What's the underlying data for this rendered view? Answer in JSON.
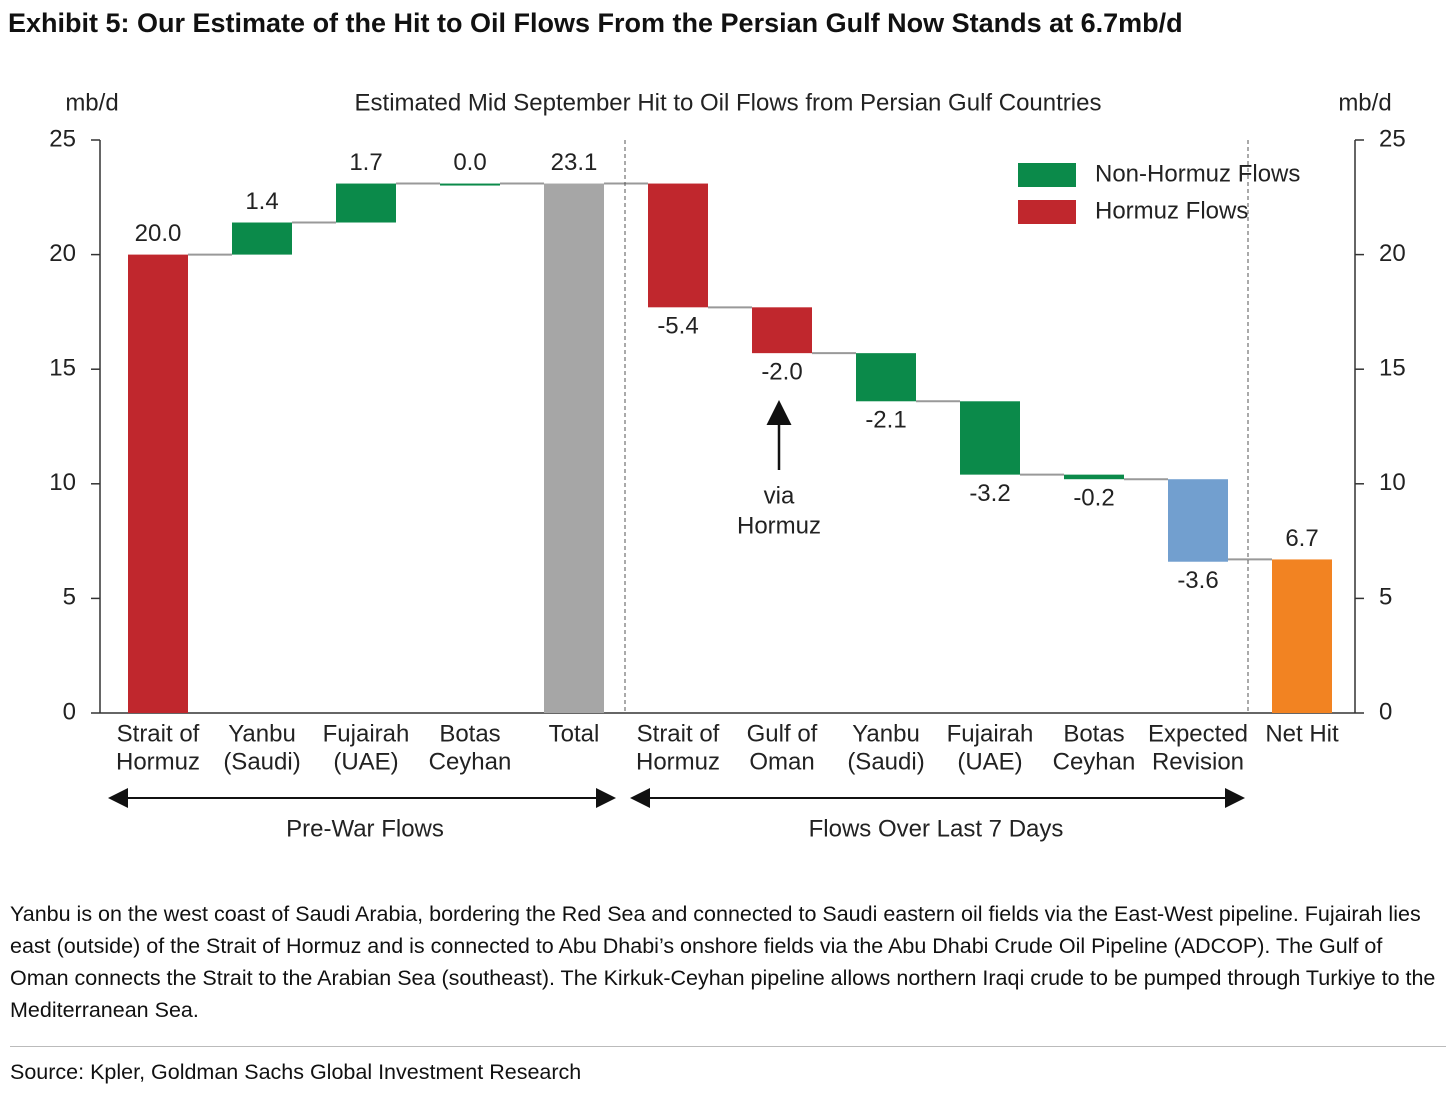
{
  "title": "Exhibit 5: Our Estimate of the Hit to Oil Flows From the Persian Gulf Now Stands at 6.7mb/d",
  "chart_data": {
    "type": "waterfall",
    "title": "Estimated Mid September Hit to Oil Flows from Persian Gulf Countries",
    "ylabel": "mb/d",
    "y2label": "mb/d",
    "categories": [
      [
        "Strait of",
        "Hormuz"
      ],
      [
        "Yanbu",
        "(Saudi)"
      ],
      [
        "Fujairah",
        "(UAE)"
      ],
      [
        "Botas",
        "Ceyhan"
      ],
      [
        "Total"
      ],
      [
        "Strait of",
        "Hormuz"
      ],
      [
        "Gulf of",
        "Oman"
      ],
      [
        "Yanbu",
        "(Saudi)"
      ],
      [
        "Fujairah",
        "(UAE)"
      ],
      [
        "Botas",
        "Ceyhan"
      ],
      [
        "Expected",
        "Revision"
      ],
      [
        "Net Hit"
      ]
    ],
    "kinds": [
      "delta",
      "delta",
      "delta",
      "delta",
      "total",
      "delta",
      "delta",
      "delta",
      "delta",
      "delta",
      "delta",
      "total"
    ],
    "values": [
      20.0,
      1.4,
      1.7,
      0.0,
      23.1,
      -5.4,
      -2.0,
      -2.1,
      -3.2,
      -0.2,
      -3.6,
      6.7
    ],
    "value_labels": [
      "20.0",
      "1.4",
      "1.7",
      "0.0",
      "23.1",
      "-5.4",
      "-2.0",
      "-2.1",
      "-3.2",
      "-0.2",
      "-3.6",
      "6.7"
    ],
    "colors": [
      "#c0272d",
      "#0b8a4a",
      "#0b8a4a",
      "#0b8a4a",
      "#a6a6a6",
      "#c0272d",
      "#c0272d",
      "#0b8a4a",
      "#0b8a4a",
      "#0b8a4a",
      "#729fcf",
      "#f28322"
    ],
    "legend": [
      {
        "name": "Non-Hormuz Flows",
        "color": "#0b8a4a"
      },
      {
        "name": "Hormuz Flows",
        "color": "#c0272d"
      }
    ],
    "ylim": [
      0,
      25
    ],
    "yticks": [
      0,
      5,
      10,
      15,
      20,
      25
    ],
    "y2lim": [
      0,
      25
    ],
    "y2ticks": [
      0,
      5,
      10,
      15,
      20,
      25
    ],
    "annotation": [
      "via",
      "Hormuz"
    ],
    "groups": [
      "Pre-War Flows",
      "Flows Over Last 7 Days"
    ]
  },
  "note": "Yanbu is on the west coast of Saudi Arabia, bordering the Red Sea and connected to Saudi eastern oil fields via the East-West pipeline. Fujairah lies east (outside) of the Strait of Hormuz and is connected to Abu Dhabi’s onshore fields via the Abu Dhabi Crude Oil Pipeline (ADCOP). The Gulf of Oman connects the Strait to the Arabian Sea (southeast). The Kirkuk-Ceyhan pipeline allows northern Iraqi crude to be pumped through Turkiye to the Mediterranean Sea.",
  "source": "Source: Kpler, Goldman Sachs Global Investment Research"
}
